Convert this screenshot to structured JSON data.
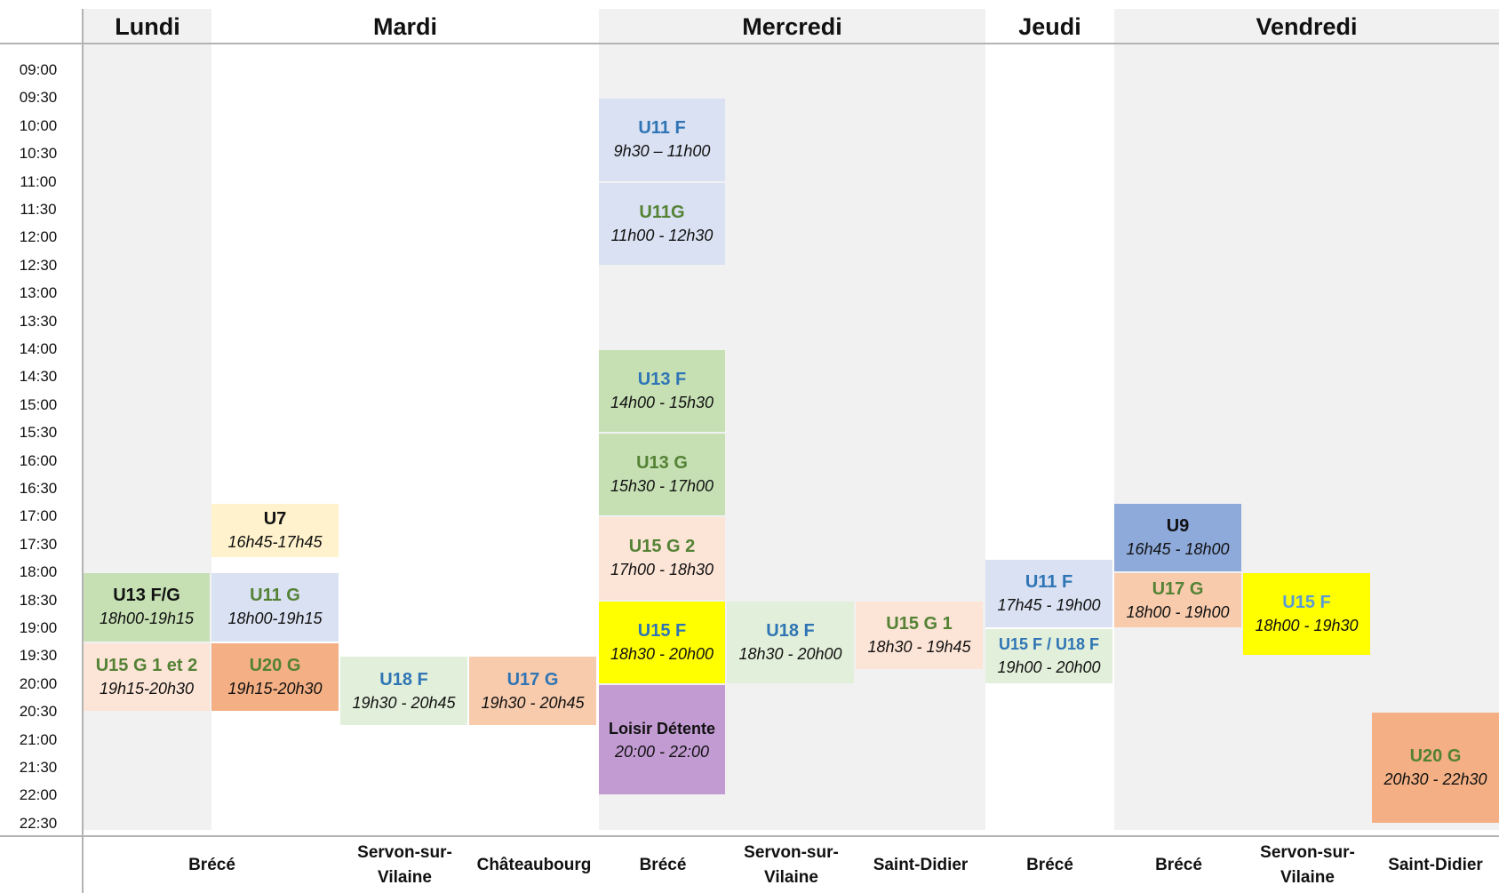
{
  "days": [
    {
      "name": "Lundi"
    },
    {
      "name": "Mardi"
    },
    {
      "name": "Mercredi"
    },
    {
      "name": "Jeudi"
    },
    {
      "name": "Vendredi"
    }
  ],
  "times": [
    "09:00",
    "09:30",
    "10:00",
    "10:30",
    "11:00",
    "11:30",
    "12:00",
    "12:30",
    "13:00",
    "13:30",
    "14:00",
    "14:30",
    "15:00",
    "15:30",
    "16:00",
    "16:30",
    "17:00",
    "17:30",
    "18:00",
    "18:30",
    "19:00",
    "19:30",
    "20:00",
    "20:30",
    "21:00",
    "21:30",
    "22:00",
    "22:30"
  ],
  "venues": [
    {
      "name": "Brécé"
    },
    {
      "name": "Servon-sur-Vilaine"
    },
    {
      "name": "Châteaubourg"
    },
    {
      "name": "Brécé"
    },
    {
      "name": "Servon-sur-Vilaine"
    },
    {
      "name": "Saint-Didier"
    },
    {
      "name": "Brécé"
    },
    {
      "name": "Brécé"
    },
    {
      "name": "Servon-sur-Vilaine"
    },
    {
      "name": "Saint-Didier"
    }
  ],
  "sessions": [
    {
      "name": "U13 F/G",
      "time": "18h00-19h15",
      "bg": "#c6e0b4",
      "fg": "#111111"
    },
    {
      "name": "U15 G 1 et 2",
      "time": "19h15-20h30",
      "bg": "#fce4d6",
      "fg": "#548235"
    },
    {
      "name": "U7",
      "time": "16h45-17h45",
      "bg": "#fff2cc",
      "fg": "#111111"
    },
    {
      "name": "U11 G",
      "time": "18h00-19h15",
      "bg": "#d9e1f2",
      "fg": "#548235"
    },
    {
      "name": "U20 G",
      "time": "19h15-20h30",
      "bg": "#f4b084",
      "fg": "#548235"
    },
    {
      "name": "U18 F",
      "time": "19h30 - 20h45",
      "bg": "#e2efda",
      "fg": "#2f75b5"
    },
    {
      "name": "U17 G",
      "time": "19h30 - 20h45",
      "bg": "#f8cbad",
      "fg": "#2f75b5"
    },
    {
      "name": "U11 F",
      "time": "9h30 – 11h00",
      "bg": "#d9e1f2",
      "fg": "#2f75b5"
    },
    {
      "name": "U11G",
      "time": "11h00 - 12h30",
      "bg": "#d9e1f2",
      "fg": "#548235"
    },
    {
      "name": "U13 F",
      "time": "14h00 - 15h30",
      "bg": "#c6e0b4",
      "fg": "#2f75b5"
    },
    {
      "name": "U13 G",
      "time": "15h30 - 17h00",
      "bg": "#c6e0b4",
      "fg": "#548235"
    },
    {
      "name": "U15 G 2",
      "time": "17h00 - 18h30",
      "bg": "#fce4d6",
      "fg": "#548235"
    },
    {
      "name": "U15 F",
      "time": "18h30 - 20h00",
      "bg": "#ffff00",
      "fg": "#2f75b5"
    },
    {
      "name": "Loisir Détente",
      "time": "20:00 - 22:00",
      "bg": "#c39bd3",
      "fg": "#111111"
    },
    {
      "name": "U18 F",
      "time": "18h30 - 20h00",
      "bg": "#e2efda",
      "fg": "#2f75b5"
    },
    {
      "name": "U15 G 1",
      "time": "18h30 - 19h45",
      "bg": "#fce4d6",
      "fg": "#548235"
    },
    {
      "name": "U11 F",
      "time": "17h45 - 19h00",
      "bg": "#d9e1f2",
      "fg": "#2f75b5"
    },
    {
      "name": "U15 F / U18 F",
      "time": "19h00 - 20h00",
      "bg": "#e2efda",
      "fg": "#2f75b5"
    },
    {
      "name": "U9",
      "time": "16h45 - 18h00",
      "bg": "#8eaadb",
      "fg": "#111111"
    },
    {
      "name": "U17 G",
      "time": "18h00 - 19h00",
      "bg": "#f8cbad",
      "fg": "#548235"
    },
    {
      "name": "U15 F",
      "time": "18h00 - 19h30",
      "bg": "#ffff00",
      "fg": "#5b9bd5"
    },
    {
      "name": "U20 G",
      "time": "20h30 - 22h30",
      "bg": "#f4b084",
      "fg": "#548235"
    }
  ]
}
